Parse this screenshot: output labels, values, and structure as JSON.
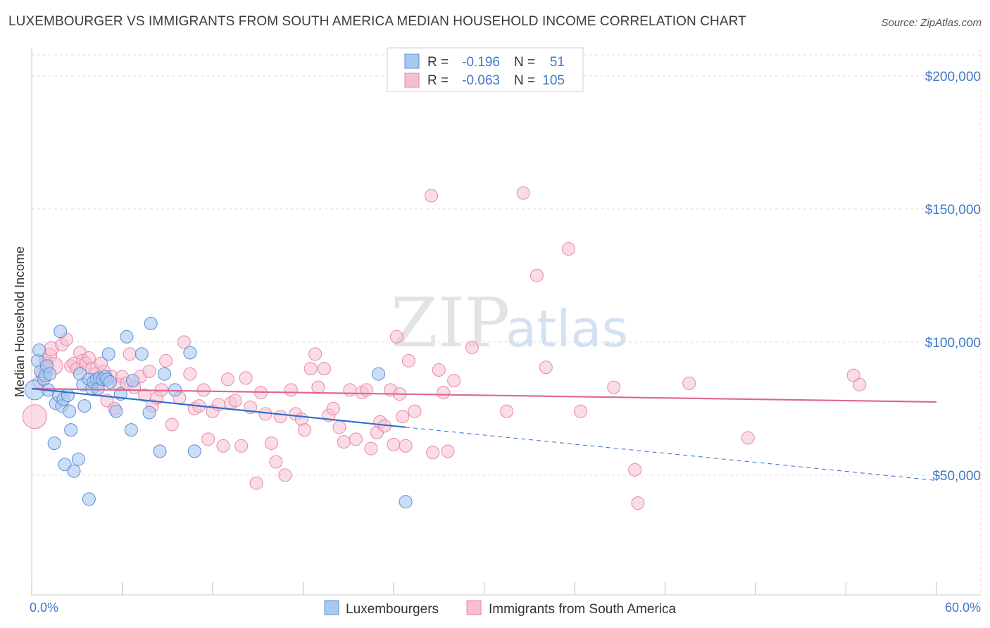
{
  "title": "LUXEMBOURGER VS IMMIGRANTS FROM SOUTH AMERICA MEDIAN HOUSEHOLD INCOME CORRELATION CHART",
  "source": "Source: ZipAtlas.com",
  "watermark": {
    "zip": "ZIP",
    "atlas": "atlas"
  },
  "colors": {
    "blue_fill": "#a9c8ef",
    "blue_stroke": "#5c8fd6",
    "blue_line": "#2f6fd0",
    "pink_fill": "#f6bfd1",
    "pink_stroke": "#e887a8",
    "pink_line": "#e0668f",
    "tick_text": "#3f77c8",
    "grid": "#dcdcdc"
  },
  "legend": {
    "rows": [
      {
        "r_label": "R =",
        "r_value": "-0.196",
        "n_label": "N =",
        "n_value": "51"
      },
      {
        "r_label": "R =",
        "r_value": "-0.063",
        "n_label": "N =",
        "n_value": "105"
      }
    ]
  },
  "chart_data": {
    "type": "scatter",
    "title": "LUXEMBOURGER VS IMMIGRANTS FROM SOUTH AMERICA MEDIAN HOUSEHOLD INCOME CORRELATION CHART",
    "xlabel": "",
    "ylabel": "Median Household Income",
    "xlim": [
      0,
      60
    ],
    "ylim": [
      5000,
      210000
    ],
    "x_tick_labels": [
      "0.0%",
      "60.0%"
    ],
    "y_ticks": [
      50000,
      100000,
      150000,
      200000
    ],
    "y_tick_labels": [
      "$50,000",
      "$100,000",
      "$150,000",
      "$200,000"
    ],
    "grid": true,
    "legend_position": "top-center",
    "series": [
      {
        "name": "Luxembourgers",
        "r": -0.196,
        "n": 51,
        "trend": {
          "x0": 0.0,
          "y0": 82500,
          "x1": 24.8,
          "y1": 68000,
          "dashed_to_x": 60,
          "dashed_to_y": 48000
        },
        "points": [
          [
            0.2,
            82000,
            14
          ],
          [
            0.4,
            93000,
            9
          ],
          [
            0.5,
            97000,
            9
          ],
          [
            0.6,
            89000,
            9
          ],
          [
            0.8,
            86000,
            9
          ],
          [
            0.9,
            87500,
            9
          ],
          [
            1.0,
            91000,
            9
          ],
          [
            1.1,
            82000,
            9
          ],
          [
            1.2,
            88000,
            9
          ],
          [
            1.5,
            62000,
            9
          ],
          [
            1.6,
            77000,
            9
          ],
          [
            1.8,
            80000,
            9
          ],
          [
            1.9,
            104000,
            9
          ],
          [
            2.0,
            76000,
            9
          ],
          [
            2.1,
            78500,
            9
          ],
          [
            2.2,
            54000,
            9
          ],
          [
            2.4,
            80000,
            9
          ],
          [
            2.5,
            74000,
            9
          ],
          [
            2.6,
            67000,
            9
          ],
          [
            2.8,
            51500,
            9
          ],
          [
            3.1,
            56000,
            9
          ],
          [
            3.2,
            88000,
            9
          ],
          [
            3.4,
            84000,
            9
          ],
          [
            3.5,
            76000,
            9
          ],
          [
            3.8,
            86000,
            9
          ],
          [
            3.8,
            41000,
            9
          ],
          [
            4.0,
            82500,
            9
          ],
          [
            4.1,
            85000,
            9
          ],
          [
            4.3,
            86000,
            9
          ],
          [
            4.4,
            82500,
            9
          ],
          [
            4.5,
            86500,
            9
          ],
          [
            4.7,
            86000,
            9
          ],
          [
            4.9,
            87000,
            9
          ],
          [
            5.0,
            86000,
            9
          ],
          [
            5.1,
            95500,
            9
          ],
          [
            5.2,
            85000,
            9
          ],
          [
            5.6,
            74000,
            9
          ],
          [
            5.9,
            80500,
            9
          ],
          [
            6.3,
            102000,
            9
          ],
          [
            6.6,
            67000,
            9
          ],
          [
            6.7,
            85500,
            9
          ],
          [
            7.3,
            95500,
            9
          ],
          [
            7.8,
            73500,
            9
          ],
          [
            7.9,
            107000,
            9
          ],
          [
            8.5,
            59000,
            9
          ],
          [
            8.8,
            88000,
            9
          ],
          [
            9.5,
            82000,
            9
          ],
          [
            10.5,
            96000,
            9
          ],
          [
            10.8,
            59000,
            9
          ],
          [
            23.0,
            88000,
            9
          ],
          [
            24.8,
            40000,
            9
          ]
        ]
      },
      {
        "name": "Immigrants from South America",
        "r": -0.063,
        "n": 105,
        "trend": {
          "x0": 0.0,
          "y0": 82500,
          "x1": 60,
          "y1": 77500
        },
        "points": [
          [
            0.2,
            72000,
            17
          ],
          [
            0.5,
            85000,
            9
          ],
          [
            0.7,
            88000,
            9
          ],
          [
            0.9,
            93000,
            9
          ],
          [
            1.0,
            92000,
            9
          ],
          [
            1.2,
            95000,
            10
          ],
          [
            1.3,
            97500,
            10
          ],
          [
            1.5,
            91000,
            12
          ],
          [
            2.0,
            99000,
            9
          ],
          [
            2.3,
            101000,
            9
          ],
          [
            2.6,
            91000,
            9
          ],
          [
            2.8,
            92000,
            9
          ],
          [
            3.0,
            90000,
            9
          ],
          [
            3.2,
            96000,
            9
          ],
          [
            3.4,
            93000,
            9
          ],
          [
            3.6,
            92000,
            9
          ],
          [
            3.8,
            94000,
            9
          ],
          [
            4.0,
            90000,
            9
          ],
          [
            4.2,
            88000,
            9
          ],
          [
            4.4,
            84000,
            9
          ],
          [
            4.6,
            92000,
            9
          ],
          [
            4.8,
            89000,
            9
          ],
          [
            5.0,
            78000,
            9
          ],
          [
            5.3,
            87000,
            9
          ],
          [
            5.5,
            75000,
            9
          ],
          [
            5.8,
            84000,
            9
          ],
          [
            6.0,
            87000,
            9
          ],
          [
            6.3,
            84500,
            9
          ],
          [
            6.5,
            95500,
            9
          ],
          [
            6.8,
            83000,
            9
          ],
          [
            7.2,
            87000,
            9
          ],
          [
            7.5,
            80000,
            9
          ],
          [
            7.8,
            89000,
            9
          ],
          [
            8.0,
            76000,
            9
          ],
          [
            8.3,
            79000,
            9
          ],
          [
            8.6,
            82000,
            9
          ],
          [
            8.9,
            93000,
            9
          ],
          [
            9.3,
            69000,
            9
          ],
          [
            9.8,
            79000,
            9
          ],
          [
            10.1,
            100000,
            9
          ],
          [
            10.5,
            88000,
            9
          ],
          [
            10.8,
            75000,
            9
          ],
          [
            11.1,
            76000,
            9
          ],
          [
            11.4,
            82000,
            9
          ],
          [
            11.7,
            63500,
            9
          ],
          [
            12.0,
            74000,
            9
          ],
          [
            12.4,
            76500,
            9
          ],
          [
            12.7,
            61000,
            9
          ],
          [
            13.0,
            86000,
            9
          ],
          [
            13.2,
            77000,
            9
          ],
          [
            13.5,
            78000,
            9
          ],
          [
            13.9,
            61000,
            9
          ],
          [
            14.2,
            86500,
            9
          ],
          [
            14.5,
            75500,
            9
          ],
          [
            14.9,
            47000,
            9
          ],
          [
            15.2,
            81000,
            9
          ],
          [
            15.5,
            73000,
            9
          ],
          [
            15.9,
            62000,
            9
          ],
          [
            16.2,
            55000,
            9
          ],
          [
            16.5,
            72000,
            9
          ],
          [
            16.8,
            50000,
            9
          ],
          [
            17.2,
            82000,
            9
          ],
          [
            17.5,
            73000,
            9
          ],
          [
            17.9,
            71000,
            9
          ],
          [
            18.1,
            67000,
            9
          ],
          [
            18.5,
            90000,
            9
          ],
          [
            18.8,
            95500,
            9
          ],
          [
            19.0,
            83000,
            9
          ],
          [
            19.4,
            90000,
            9
          ],
          [
            19.7,
            72500,
            9
          ],
          [
            20.0,
            75000,
            9
          ],
          [
            20.4,
            68000,
            9
          ],
          [
            20.7,
            62500,
            9
          ],
          [
            21.1,
            82000,
            9
          ],
          [
            21.5,
            63500,
            9
          ],
          [
            21.9,
            81000,
            9
          ],
          [
            22.2,
            82000,
            9
          ],
          [
            22.5,
            60000,
            9
          ],
          [
            22.9,
            66000,
            9
          ],
          [
            23.1,
            70000,
            9
          ],
          [
            23.4,
            68500,
            9
          ],
          [
            23.8,
            82000,
            9
          ],
          [
            24.0,
            61500,
            9
          ],
          [
            24.4,
            80500,
            9
          ],
          [
            24.8,
            61000,
            9
          ],
          [
            24.2,
            102000,
            9
          ],
          [
            24.6,
            72000,
            9
          ],
          [
            25.0,
            93000,
            9
          ],
          [
            25.4,
            74000,
            9
          ],
          [
            26.6,
            58500,
            9
          ],
          [
            27.0,
            89500,
            9
          ],
          [
            27.3,
            81000,
            9
          ],
          [
            27.6,
            59000,
            9
          ],
          [
            28.0,
            85500,
            9
          ],
          [
            26.5,
            155000,
            9
          ],
          [
            29.2,
            98000,
            9
          ],
          [
            31.5,
            74000,
            9
          ],
          [
            32.6,
            156000,
            9
          ],
          [
            33.5,
            125000,
            9
          ],
          [
            34.1,
            90500,
            9
          ],
          [
            35.6,
            135000,
            9
          ],
          [
            36.4,
            74000,
            9
          ],
          [
            38.6,
            83000,
            9
          ],
          [
            40.0,
            52000,
            9
          ],
          [
            40.2,
            39500,
            9
          ],
          [
            43.6,
            84500,
            9
          ],
          [
            47.5,
            64000,
            9
          ],
          [
            54.5,
            87500,
            9
          ],
          [
            54.9,
            84000,
            9
          ]
        ]
      }
    ]
  },
  "bottom_legend": {
    "items": [
      {
        "label": "Luxembourgers"
      },
      {
        "label": "Immigrants from South America"
      }
    ]
  }
}
